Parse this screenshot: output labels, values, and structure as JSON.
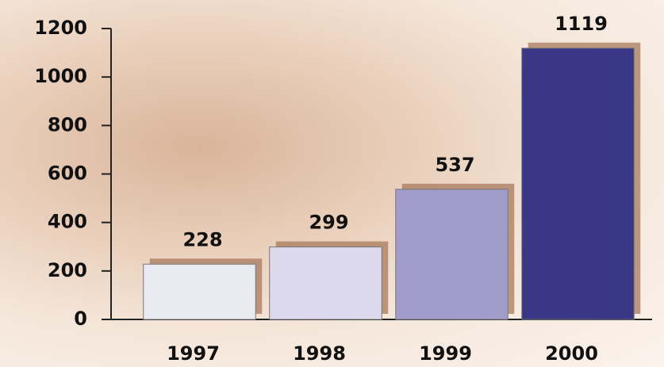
{
  "chart_data": {
    "type": "bar",
    "categories": [
      "1997",
      "1998",
      "1999",
      "2000"
    ],
    "values": [
      228,
      299,
      537,
      1119
    ],
    "colors": [
      "#e9e9f1",
      "#dcd9ec",
      "#a19cc9",
      "#3b3787"
    ],
    "ylim": [
      0,
      1200
    ],
    "yticks": [
      0,
      200,
      400,
      600,
      800,
      1000,
      1200
    ]
  }
}
